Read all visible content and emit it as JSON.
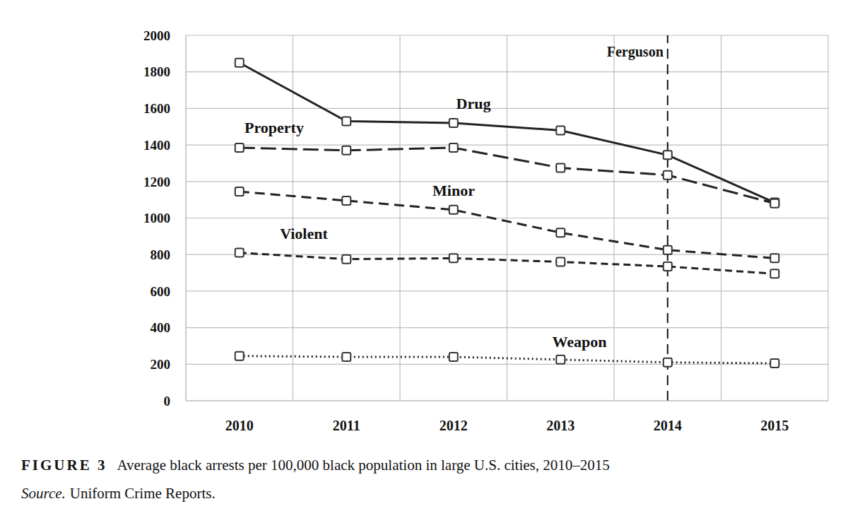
{
  "chart_data": {
    "type": "line",
    "figure_label": "FIGURE 3",
    "title": "Average black arrests per 100,000 black population in large U.S. cities, 2010–2015",
    "source_label": "Source.",
    "source": "Uniform Crime Reports.",
    "categories": [
      "2010",
      "2011",
      "2012",
      "2013",
      "2014",
      "2015"
    ],
    "series": [
      {
        "name": "Drug",
        "color": "#222222",
        "line_style": "solid",
        "marker": "square",
        "values": [
          1850,
          1530,
          1520,
          1480,
          1345,
          1085
        ]
      },
      {
        "name": "Property",
        "color": "#222222",
        "line_style": "longdash",
        "marker": "square",
        "values": [
          1385,
          1370,
          1385,
          1275,
          1235,
          1080
        ]
      },
      {
        "name": "Minor",
        "color": "#222222",
        "line_style": "dash",
        "marker": "square",
        "values": [
          1145,
          1095,
          1045,
          920,
          825,
          780
        ]
      },
      {
        "name": "Violent",
        "color": "#222222",
        "line_style": "shortdash",
        "marker": "square",
        "values": [
          810,
          775,
          780,
          760,
          735,
          695
        ]
      },
      {
        "name": "Weapon",
        "color": "#222222",
        "line_style": "dotted",
        "marker": "square",
        "values": [
          245,
          240,
          240,
          225,
          210,
          205
        ]
      }
    ],
    "annotations": [
      {
        "x": "2014",
        "text": "Ferguson",
        "line_style": "dash"
      }
    ],
    "ylim": [
      0,
      2000
    ],
    "yticks": [
      0,
      200,
      400,
      600,
      800,
      1000,
      1200,
      1400,
      1600,
      1800,
      2000
    ],
    "grid": true,
    "legend": "none"
  }
}
